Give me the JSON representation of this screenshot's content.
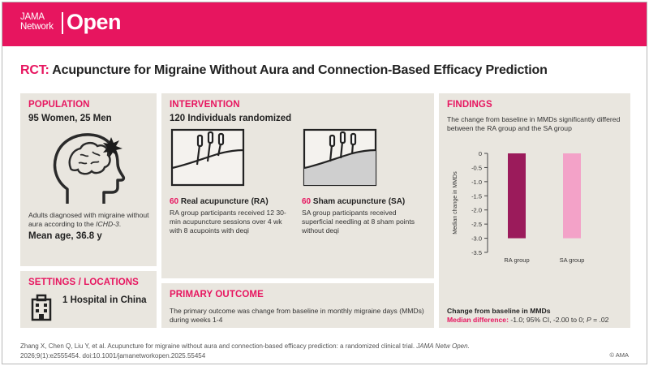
{
  "header": {
    "logo_line1": "JAMA",
    "logo_line2": "Network",
    "logo_open": "Open",
    "brand_color": "#e7155f"
  },
  "title": {
    "prefix": "RCT:",
    "text": "Acupuncture for Migraine Without Aura and Connection-Based Efficacy Prediction"
  },
  "population": {
    "heading": "POPULATION",
    "summary": "95 Women, 25 Men",
    "icon": "head-migraine-icon",
    "description_prefix": "Adults diagnosed with migraine without aura according to the",
    "description_ref": "ICHD-3",
    "description_suffix": ".",
    "mean_age": "Mean age, 36.8 y"
  },
  "settings": {
    "heading": "SETTINGS / LOCATIONS",
    "icon": "hospital-icon",
    "text": "1 Hospital in China"
  },
  "intervention": {
    "heading": "INTERVENTION",
    "summary": "120 Individuals randomized",
    "arms": [
      {
        "count": "60",
        "name": "Real acupuncture (RA)",
        "description": "RA group participants received 12 30-min acupuncture sessions over 4 wk with 8 acupoints with deqi",
        "icon": "needles-real-icon"
      },
      {
        "count": "60",
        "name": "Sham acupuncture (SA)",
        "description": "SA group participants received superficial needling at 8 sham points without deqi",
        "icon": "needles-sham-icon"
      }
    ]
  },
  "primary_outcome": {
    "heading": "PRIMARY OUTCOME",
    "text": "The primary outcome was change from baseline in monthly migraine days (MMDs) during weeks 1-4"
  },
  "findings": {
    "heading": "FINDINGS",
    "text": "The change from baseline in MMDs significantly differed between the RA group and the SA group",
    "result_label": "Change from baseline in MMDs",
    "result_stat_label": "Median difference:",
    "result_stat_value_a": "-1.0; 95% CI, -2.00 to 0;",
    "result_p_letter": "P",
    "result_p_value": "= .02"
  },
  "chart_data": {
    "type": "bar",
    "categories": [
      "RA group",
      "SA group"
    ],
    "values": [
      -3.0,
      -3.0
    ],
    "colors": [
      "#9b1b5b",
      "#f3a2c8"
    ],
    "ylabel": "Median change in MMDs",
    "ylim": [
      -3.5,
      0
    ],
    "yticks": [
      "0",
      "-0.5",
      "-1.0",
      "-1.5",
      "-2.0",
      "-2.5",
      "-3.0",
      "-3.5"
    ],
    "title": ""
  },
  "footer": {
    "citation_text": "Zhang X, Chen Q, Liu Y, et al. Acupuncture for migraine without aura and connection-based efficacy prediction: a randomized clinical trial.",
    "citation_journal": "JAMA Netw Open.",
    "citation_rest": "2026;9(1):e2555454. doi:10.1001/jamanetworkopen.2025.55454",
    "copyright": "© AMA"
  }
}
